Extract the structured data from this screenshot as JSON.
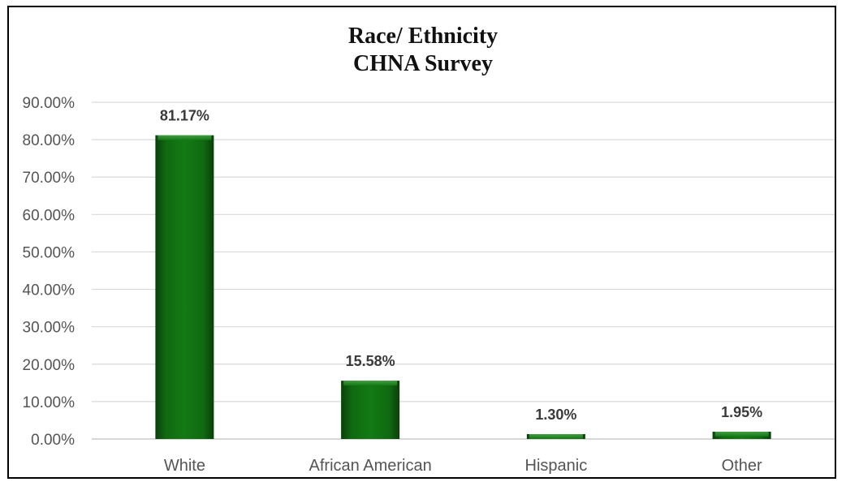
{
  "chart_data": {
    "type": "bar",
    "title_lines": [
      "Race/ Ethnicity",
      "CHNA Survey"
    ],
    "categories": [
      "White",
      "African American",
      "Hispanic",
      "Other"
    ],
    "values": [
      81.17,
      15.58,
      1.3,
      1.95
    ],
    "data_labels": [
      "81.17%",
      "15.58%",
      "1.30%",
      "1.95%"
    ],
    "y_ticks": [
      "0.00%",
      "10.00%",
      "20.00%",
      "30.00%",
      "40.00%",
      "50.00%",
      "60.00%",
      "70.00%",
      "80.00%",
      "90.00%"
    ],
    "ylim": [
      0,
      90
    ],
    "grid": true,
    "legend": "none",
    "colors": {
      "bar": "#006400",
      "bar_dark": "#0a3d0a",
      "bar_highlight": "#2e8b2e",
      "grid": "#d9d9d9"
    }
  }
}
